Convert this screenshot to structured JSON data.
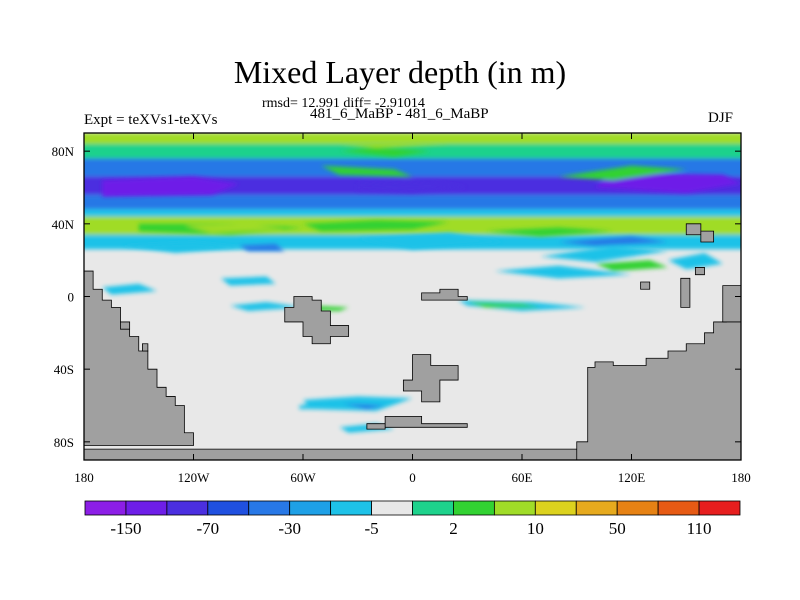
{
  "header": {
    "title": "Mixed Layer depth (in m)",
    "stats": "rmsd= 12.991 diff= -2.91014",
    "left_label": "Expt = teXVs1-teXVs",
    "center_label": "481_6_MaBP - 481_6_MaBP",
    "right_label": "DJF"
  },
  "chart_data": {
    "type": "heatmap",
    "title": "Mixed Layer depth (in m)",
    "x_range": [
      -180,
      180
    ],
    "y_range": [
      -90,
      90
    ],
    "x_ticks": [
      {
        "value": -180,
        "label": "180"
      },
      {
        "value": -120,
        "label": "120W"
      },
      {
        "value": -60,
        "label": "60W"
      },
      {
        "value": 0,
        "label": "0"
      },
      {
        "value": 60,
        "label": "60E"
      },
      {
        "value": 120,
        "label": "120E"
      },
      {
        "value": 180,
        "label": "180"
      }
    ],
    "y_ticks": [
      {
        "value": 80,
        "label": "80N"
      },
      {
        "value": 40,
        "label": "40N"
      },
      {
        "value": 0,
        "label": "0"
      },
      {
        "value": -40,
        "label": "40S"
      },
      {
        "value": -80,
        "label": "80S"
      }
    ],
    "colorbar": {
      "colors": [
        "#8c1ee6",
        "#6e1ee8",
        "#4b2fe0",
        "#2050e0",
        "#2878e6",
        "#1ea0e6",
        "#1ec2e8",
        "#e8e8e8",
        "#1ed28c",
        "#32d232",
        "#a0dc28",
        "#dcd21e",
        "#e6aa1e",
        "#e68214",
        "#e65a14",
        "#e61e1e"
      ],
      "labels": [
        "-150",
        "-70",
        "-30",
        "-5",
        "2",
        "10",
        "50",
        "110"
      ],
      "label_positions": [
        1,
        3,
        5,
        7,
        9,
        11,
        13,
        15
      ]
    },
    "land_color": "#a0a0a0",
    "ocean_zero_color": "#e8e8e8",
    "bands": [
      {
        "lat_top": 90,
        "lat_bottom": 84,
        "value": 15
      },
      {
        "lat_top": 84,
        "lat_bottom": 76,
        "value": 3
      },
      {
        "lat_top": 76,
        "lat_bottom": 66,
        "value": -30
      },
      {
        "lat_top": 66,
        "lat_bottom": 56,
        "value": -70
      },
      {
        "lat_top": 56,
        "lat_bottom": 48,
        "value": -30
      },
      {
        "lat_top": 48,
        "lat_bottom": 44,
        "value": -5
      },
      {
        "lat_top": 44,
        "lat_bottom": 34,
        "value": 10
      },
      {
        "lat_top": 34,
        "lat_bottom": 26,
        "value": -5
      }
    ]
  }
}
